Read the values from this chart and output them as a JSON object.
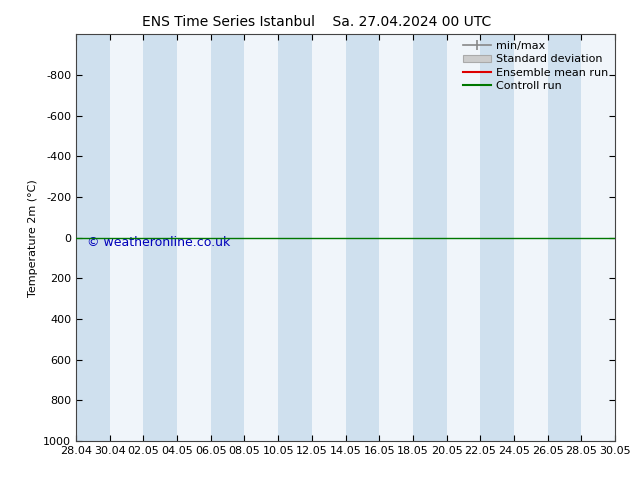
{
  "title_left": "ENS Time Series Istanbul",
  "title_right": "Sa. 27.04.2024 00 UTC",
  "ylabel": "Temperature 2m (°C)",
  "ylim": [
    -1000,
    1000
  ],
  "yticks": [
    -800,
    -600,
    -400,
    -200,
    0,
    200,
    400,
    600,
    800,
    1000
  ],
  "xtick_labels": [
    "28.04",
    "30.04",
    "02.05",
    "04.05",
    "06.05",
    "08.05",
    "10.05",
    "12.05",
    "14.05",
    "16.05",
    "18.05",
    "20.05",
    "22.05",
    "24.05",
    "26.05",
    "28.05",
    "30.05"
  ],
  "background_color": "#ffffff",
  "plot_bg_color": "#f0f5fa",
  "stripe_color": "#cfe0ee",
  "control_run_color": "#007700",
  "ensemble_mean_color": "#dd0000",
  "minmax_color": "#888888",
  "stddev_color": "#cccccc",
  "stddev_edge_color": "#aaaaaa",
  "watermark": "© weatheronline.co.uk",
  "watermark_color": "#0000bb",
  "title_fontsize": 10,
  "axis_fontsize": 8,
  "tick_fontsize": 8,
  "legend_fontsize": 8
}
